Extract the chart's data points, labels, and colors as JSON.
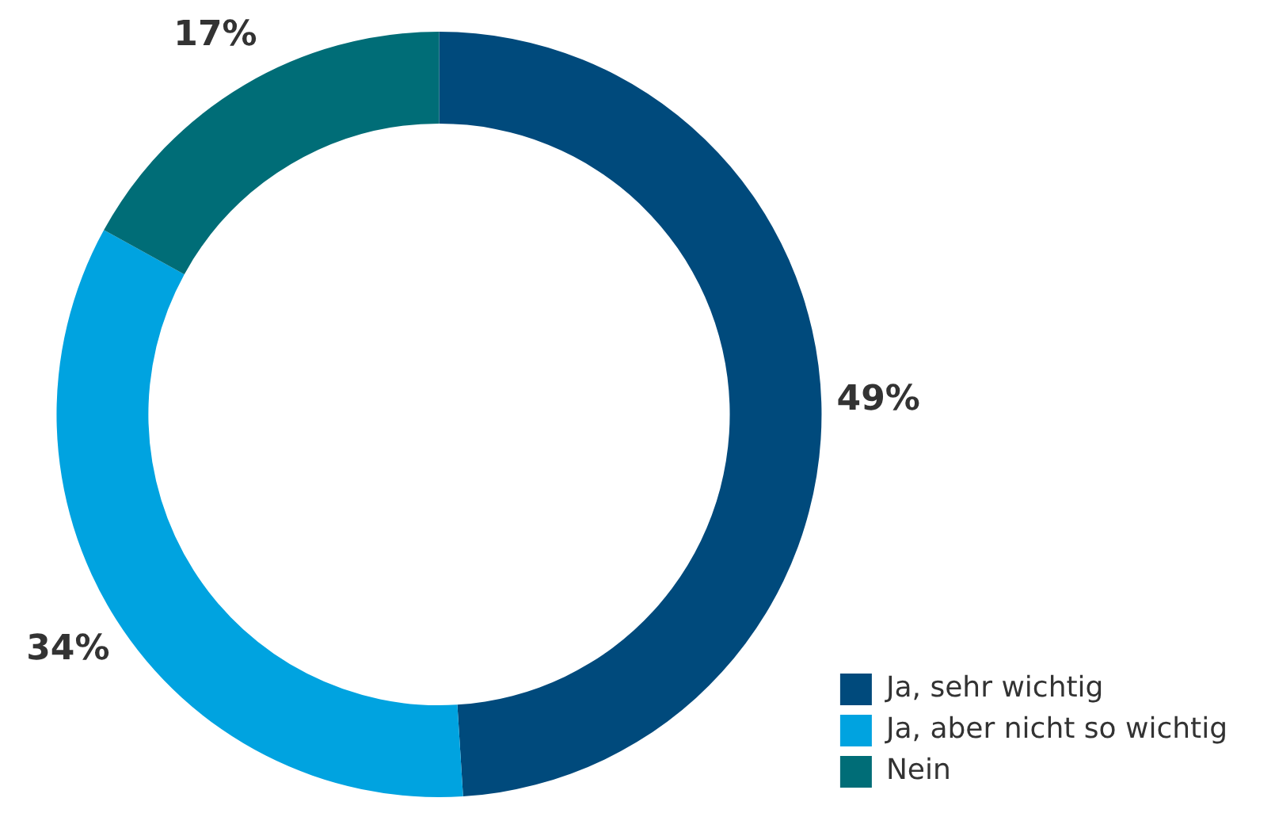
{
  "chart_data": {
    "type": "donut",
    "categories": [
      "Ja, sehr wichtig",
      "Ja, aber nicht so wichtig",
      "Nein"
    ],
    "values": [
      49,
      34,
      17
    ],
    "colors": [
      "#004a7c",
      "#00a3e0",
      "#006d77"
    ],
    "value_labels": [
      "49%",
      "34%",
      "17%"
    ],
    "legend": "bottom right"
  }
}
